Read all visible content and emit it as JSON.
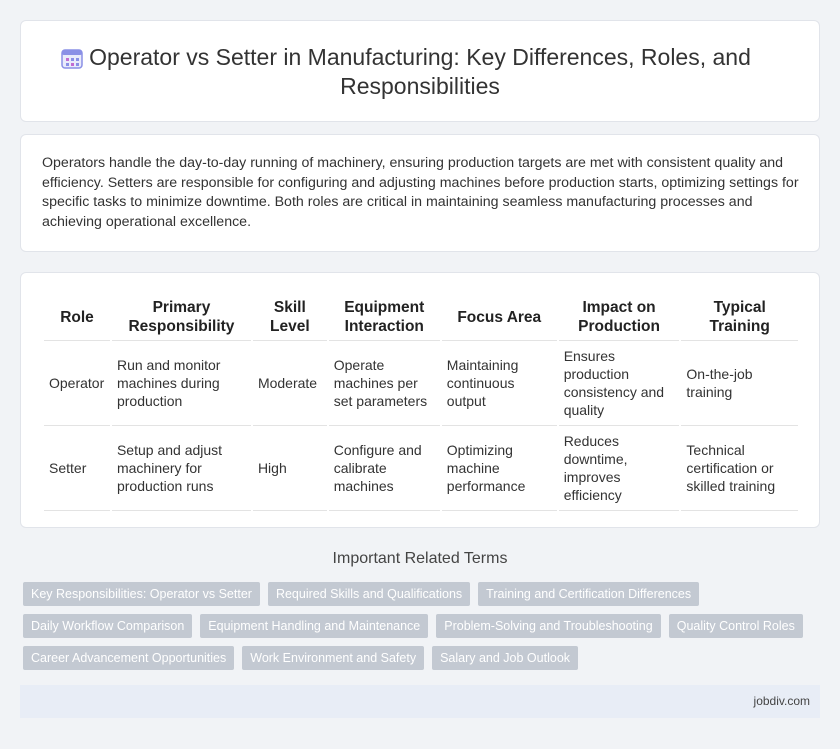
{
  "header": {
    "title": "Operator vs Setter in Manufacturing: Key Differences, Roles, and Responsibilities",
    "icon": "calendar-icon"
  },
  "intro": {
    "text": "Operators handle the day-to-day running of machinery, ensuring production targets are met with consistent quality and efficiency. Setters are responsible for configuring and adjusting machines before production starts, optimizing settings for specific tasks to minimize downtime. Both roles are critical in maintaining seamless manufacturing processes and achieving operational excellence."
  },
  "table": {
    "headers": [
      "Role",
      "Primary Responsibility",
      "Skill Level",
      "Equipment Interaction",
      "Focus Area",
      "Impact on Production",
      "Typical Training"
    ],
    "rows": [
      [
        "Operator",
        "Run and monitor machines during production",
        "Moderate",
        "Operate machines per set parameters",
        "Maintaining continuous output",
        "Ensures production consistency and quality",
        "On-the-job training"
      ],
      [
        "Setter",
        "Setup and adjust machinery for production runs",
        "High",
        "Configure and calibrate machines",
        "Optimizing machine performance",
        "Reduces downtime, improves efficiency",
        "Technical certification or skilled training"
      ]
    ]
  },
  "related": {
    "title": "Important Related Terms",
    "rows": [
      [
        "Key Responsibilities: Operator vs Setter",
        "Required Skills and Qualifications",
        "Training and Certification Differences"
      ],
      [
        "Daily Workflow Comparison",
        "Equipment Handling and Maintenance",
        "Problem-Solving and Troubleshooting",
        "Quality Control Roles"
      ],
      [
        "Career Advancement Opportunities",
        "Work Environment and Safety",
        "Salary and Job Outlook"
      ]
    ]
  },
  "footer": {
    "site": "jobdiv.com"
  },
  "colors": {
    "accent": "#7b83e8",
    "tag": "#c3c9d2",
    "footer": "#e8edf6"
  }
}
